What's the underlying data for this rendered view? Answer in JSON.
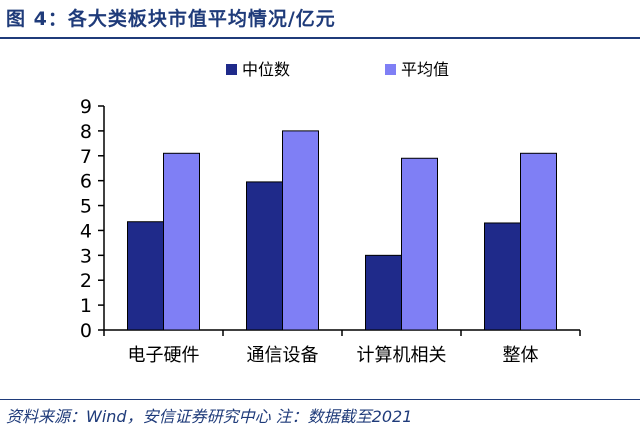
{
  "figure": {
    "title": "图 4：各大类板块市值平均情况/亿元",
    "source": "资料来源：Wind，安信证券研究中心 注：数据截至2021"
  },
  "chart_data": {
    "type": "bar",
    "categories": [
      "电子硬件",
      "通信设备",
      "计算机相关",
      "整体"
    ],
    "series": [
      {
        "name": "中位数",
        "values": [
          4.35,
          5.95,
          3.0,
          4.3
        ],
        "color": "#1f2a8a"
      },
      {
        "name": "平均值",
        "values": [
          7.1,
          8.0,
          6.9,
          7.1
        ],
        "color": "#7f7ff5"
      }
    ],
    "y_ticks": [
      "0",
      "1",
      "2",
      "3",
      "4",
      "5",
      "6",
      "7",
      "8",
      "9"
    ],
    "ylim": [
      0,
      9
    ],
    "grid": false,
    "legend_position": "top"
  }
}
